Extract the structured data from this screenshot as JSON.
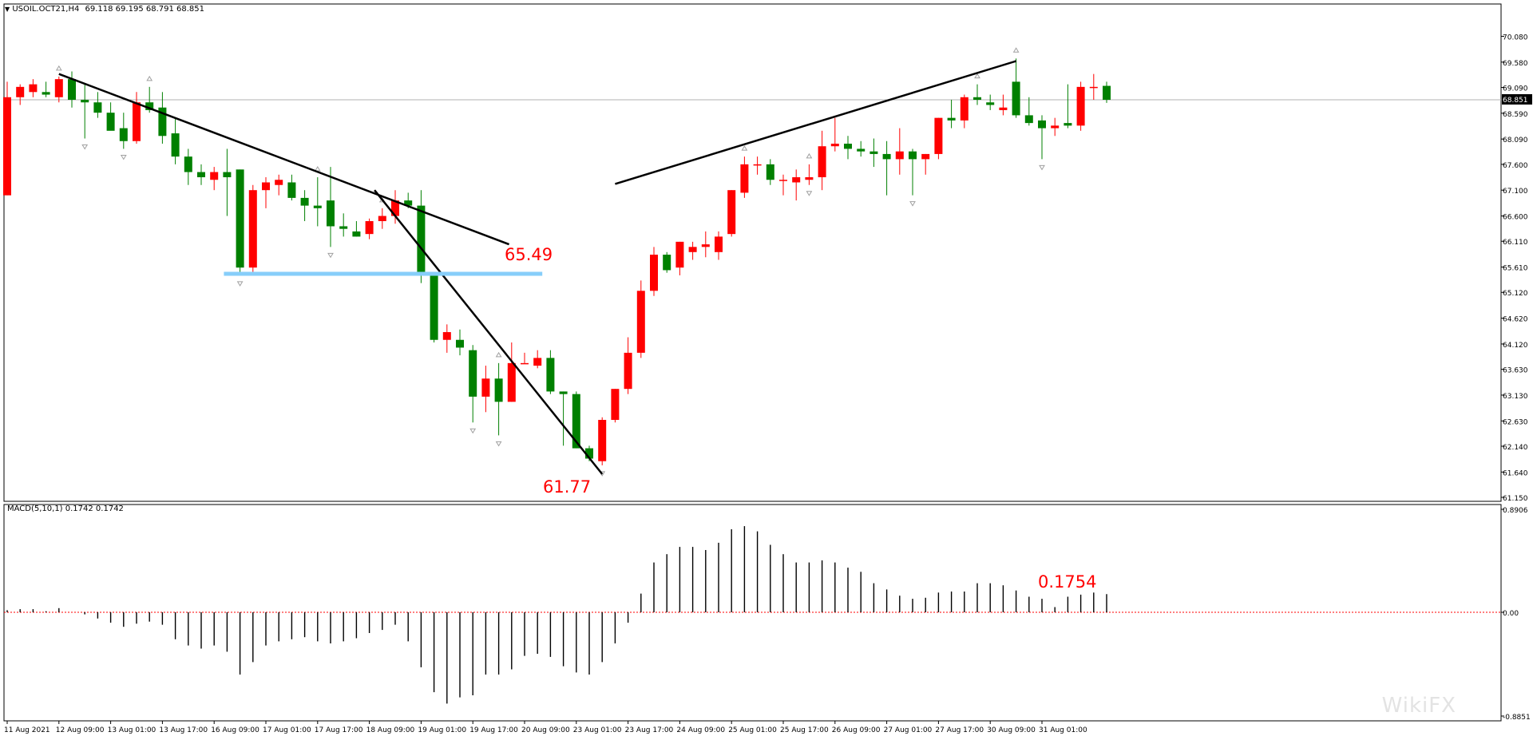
{
  "header": {
    "symbol": "USOIL.OCT21,H4",
    "ohlc": "69.118 69.195 68.791 68.851",
    "dropdown_arrow": "▼"
  },
  "macd_panel": {
    "label": "MACD(5,10,1) 0.1742 0.1742",
    "axis_labels": [
      "0.8906",
      "0.00",
      "-0.8851"
    ]
  },
  "annotations": {
    "resistance_value": "65.49",
    "low_value": "61.77",
    "macd_value": "0.1754"
  },
  "current_price_label": "68.851",
  "watermark": "WikiFX",
  "colors": {
    "bull": "#ff0000",
    "bear": "#008000",
    "wick": "#000000",
    "support": "#87cefa",
    "annotation": "#ff0000",
    "fractal": "#a0a0a0"
  },
  "chart_data": [
    {
      "type": "candlestick",
      "title": "USOIL.OCT21,H4",
      "ylim": [
        61.15,
        70.35
      ],
      "y_ticks": [
        "70.080",
        "69.580",
        "69.090",
        "68.590",
        "68.090",
        "67.600",
        "67.100",
        "66.600",
        "66.110",
        "65.610",
        "65.120",
        "64.620",
        "64.120",
        "63.630",
        "63.130",
        "62.630",
        "62.140",
        "61.640",
        "61.150"
      ],
      "x_labels": [
        "11 Aug 2021",
        "12 Aug 09:00",
        "13 Aug 01:00",
        "13 Aug 17:00",
        "16 Aug 09:00",
        "17 Aug 01:00",
        "17 Aug 17:00",
        "18 Aug 09:00",
        "19 Aug 01:00",
        "19 Aug 17:00",
        "20 Aug 09:00",
        "23 Aug 01:00",
        "23 Aug 17:00",
        "24 Aug 09:00",
        "25 Aug 01:00",
        "25 Aug 17:00",
        "26 Aug 09:00",
        "27 Aug 01:00",
        "27 Aug 17:00",
        "30 Aug 09:00",
        "31 Aug 01:00"
      ],
      "current_price": 68.851,
      "candles": [
        {
          "o": 67.0,
          "h": 69.2,
          "l": 67.0,
          "c": 68.9
        },
        {
          "o": 68.9,
          "h": 69.15,
          "l": 68.75,
          "c": 69.1
        },
        {
          "o": 69.0,
          "h": 69.25,
          "l": 68.9,
          "c": 69.15
        },
        {
          "o": 69.0,
          "h": 69.2,
          "l": 68.9,
          "c": 68.95
        },
        {
          "o": 68.9,
          "h": 69.3,
          "l": 68.8,
          "c": 69.25
        },
        {
          "o": 69.25,
          "h": 69.4,
          "l": 68.7,
          "c": 68.85
        },
        {
          "o": 68.85,
          "h": 69.15,
          "l": 68.1,
          "c": 68.8
        },
        {
          "o": 68.8,
          "h": 69.0,
          "l": 68.5,
          "c": 68.6
        },
        {
          "o": 68.6,
          "h": 68.8,
          "l": 68.3,
          "c": 68.25
        },
        {
          "o": 68.3,
          "h": 68.6,
          "l": 67.9,
          "c": 68.05
        },
        {
          "o": 68.05,
          "h": 69.0,
          "l": 68.0,
          "c": 68.8
        },
        {
          "o": 68.8,
          "h": 69.1,
          "l": 68.6,
          "c": 68.65
        },
        {
          "o": 68.7,
          "h": 69.0,
          "l": 68.0,
          "c": 68.15
        },
        {
          "o": 68.2,
          "h": 68.5,
          "l": 67.6,
          "c": 67.75
        },
        {
          "o": 67.75,
          "h": 67.9,
          "l": 67.2,
          "c": 67.45
        },
        {
          "o": 67.45,
          "h": 67.6,
          "l": 67.2,
          "c": 67.35
        },
        {
          "o": 67.3,
          "h": 67.55,
          "l": 67.1,
          "c": 67.45
        },
        {
          "o": 67.45,
          "h": 67.9,
          "l": 66.6,
          "c": 67.35
        },
        {
          "o": 67.5,
          "h": 67.5,
          "l": 65.45,
          "c": 65.6
        },
        {
          "o": 65.6,
          "h": 67.2,
          "l": 65.5,
          "c": 67.1
        },
        {
          "o": 67.1,
          "h": 67.35,
          "l": 66.75,
          "c": 67.25
        },
        {
          "o": 67.2,
          "h": 67.4,
          "l": 67.0,
          "c": 67.3
        },
        {
          "o": 67.25,
          "h": 67.4,
          "l": 66.9,
          "c": 66.95
        },
        {
          "o": 66.95,
          "h": 67.1,
          "l": 66.5,
          "c": 66.8
        },
        {
          "o": 66.8,
          "h": 67.35,
          "l": 66.4,
          "c": 66.75
        },
        {
          "o": 66.9,
          "h": 67.55,
          "l": 66.0,
          "c": 66.4
        },
        {
          "o": 66.4,
          "h": 66.65,
          "l": 66.2,
          "c": 66.35
        },
        {
          "o": 66.3,
          "h": 66.5,
          "l": 66.2,
          "c": 66.2
        },
        {
          "o": 66.25,
          "h": 66.55,
          "l": 66.15,
          "c": 66.5
        },
        {
          "o": 66.5,
          "h": 66.75,
          "l": 66.35,
          "c": 66.6
        },
        {
          "o": 66.6,
          "h": 67.1,
          "l": 66.45,
          "c": 66.9
        },
        {
          "o": 66.9,
          "h": 67.05,
          "l": 66.75,
          "c": 66.8
        },
        {
          "o": 66.8,
          "h": 67.1,
          "l": 65.3,
          "c": 65.45
        },
        {
          "o": 65.45,
          "h": 65.5,
          "l": 64.15,
          "c": 64.2
        },
        {
          "o": 64.2,
          "h": 64.5,
          "l": 63.95,
          "c": 64.35
        },
        {
          "o": 64.2,
          "h": 64.4,
          "l": 63.9,
          "c": 64.05
        },
        {
          "o": 64.0,
          "h": 64.1,
          "l": 62.6,
          "c": 63.1
        },
        {
          "o": 63.1,
          "h": 63.7,
          "l": 62.8,
          "c": 63.45
        },
        {
          "o": 63.45,
          "h": 63.75,
          "l": 62.35,
          "c": 63.0
        },
        {
          "o": 63.0,
          "h": 64.15,
          "l": 63.0,
          "c": 63.75
        },
        {
          "o": 63.75,
          "h": 63.95,
          "l": 63.75,
          "c": 63.75
        },
        {
          "o": 63.7,
          "h": 64.0,
          "l": 63.65,
          "c": 63.85
        },
        {
          "o": 63.85,
          "h": 64.0,
          "l": 63.15,
          "c": 63.2
        },
        {
          "o": 63.2,
          "h": 63.2,
          "l": 62.15,
          "c": 63.15
        },
        {
          "o": 63.15,
          "h": 63.2,
          "l": 62.1,
          "c": 62.1
        },
        {
          "o": 62.1,
          "h": 62.15,
          "l": 61.85,
          "c": 61.9
        },
        {
          "o": 61.85,
          "h": 62.7,
          "l": 61.77,
          "c": 62.65
        },
        {
          "o": 62.65,
          "h": 63.25,
          "l": 62.6,
          "c": 63.25
        },
        {
          "o": 63.25,
          "h": 64.25,
          "l": 63.15,
          "c": 63.95
        },
        {
          "o": 63.95,
          "h": 65.35,
          "l": 63.85,
          "c": 65.15
        },
        {
          "o": 65.15,
          "h": 66.0,
          "l": 65.05,
          "c": 65.85
        },
        {
          "o": 65.85,
          "h": 65.9,
          "l": 65.5,
          "c": 65.55
        },
        {
          "o": 65.6,
          "h": 66.1,
          "l": 65.45,
          "c": 66.1
        },
        {
          "o": 65.9,
          "h": 66.1,
          "l": 65.75,
          "c": 66.0
        },
        {
          "o": 66.0,
          "h": 66.3,
          "l": 65.8,
          "c": 66.05
        },
        {
          "o": 65.9,
          "h": 66.3,
          "l": 65.75,
          "c": 66.2
        },
        {
          "o": 66.25,
          "h": 67.1,
          "l": 66.2,
          "c": 67.1
        },
        {
          "o": 67.05,
          "h": 67.75,
          "l": 66.95,
          "c": 67.6
        },
        {
          "o": 67.6,
          "h": 67.75,
          "l": 67.4,
          "c": 67.6
        },
        {
          "o": 67.6,
          "h": 67.7,
          "l": 67.2,
          "c": 67.3
        },
        {
          "o": 67.3,
          "h": 67.4,
          "l": 67.0,
          "c": 67.3
        },
        {
          "o": 67.25,
          "h": 67.5,
          "l": 66.9,
          "c": 67.35
        },
        {
          "o": 67.3,
          "h": 67.6,
          "l": 67.2,
          "c": 67.35
        },
        {
          "o": 67.35,
          "h": 68.25,
          "l": 67.1,
          "c": 67.95
        },
        {
          "o": 67.95,
          "h": 68.5,
          "l": 67.85,
          "c": 68.0
        },
        {
          "o": 68.0,
          "h": 68.15,
          "l": 67.7,
          "c": 67.9
        },
        {
          "o": 67.9,
          "h": 68.05,
          "l": 67.75,
          "c": 67.85
        },
        {
          "o": 67.85,
          "h": 68.1,
          "l": 67.55,
          "c": 67.8
        },
        {
          "o": 67.8,
          "h": 68.05,
          "l": 67.0,
          "c": 67.7
        },
        {
          "o": 67.7,
          "h": 68.3,
          "l": 67.4,
          "c": 67.85
        },
        {
          "o": 67.85,
          "h": 67.9,
          "l": 67.0,
          "c": 67.7
        },
        {
          "o": 67.7,
          "h": 67.8,
          "l": 67.4,
          "c": 67.8
        },
        {
          "o": 67.8,
          "h": 68.5,
          "l": 67.7,
          "c": 68.5
        },
        {
          "o": 68.5,
          "h": 68.85,
          "l": 68.3,
          "c": 68.45
        },
        {
          "o": 68.45,
          "h": 68.95,
          "l": 68.3,
          "c": 68.9
        },
        {
          "o": 68.9,
          "h": 69.15,
          "l": 68.75,
          "c": 68.85
        },
        {
          "o": 68.8,
          "h": 68.95,
          "l": 68.65,
          "c": 68.75
        },
        {
          "o": 68.65,
          "h": 68.95,
          "l": 68.55,
          "c": 68.7
        },
        {
          "o": 69.2,
          "h": 69.65,
          "l": 68.5,
          "c": 68.55
        },
        {
          "o": 68.55,
          "h": 68.9,
          "l": 68.35,
          "c": 68.4
        },
        {
          "o": 68.45,
          "h": 68.55,
          "l": 67.7,
          "c": 68.3
        },
        {
          "o": 68.3,
          "h": 68.5,
          "l": 68.15,
          "c": 68.35
        },
        {
          "o": 68.4,
          "h": 69.15,
          "l": 68.3,
          "c": 68.35
        },
        {
          "o": 68.35,
          "h": 69.2,
          "l": 68.25,
          "c": 69.1
        },
        {
          "o": 69.1,
          "h": 69.35,
          "l": 68.85,
          "c": 69.1
        },
        {
          "o": 69.12,
          "h": 69.2,
          "l": 68.79,
          "c": 68.85
        }
      ],
      "trendlines": [
        {
          "x1": 4,
          "y1": 69.35,
          "x2": 38.8,
          "y2": 66.05
        },
        {
          "x1": 28.4,
          "y1": 67.1,
          "x2": 46,
          "y2": 61.6
        },
        {
          "x1": 47,
          "y1": 67.22,
          "x2": 78,
          "y2": 69.6
        }
      ],
      "support": {
        "x1": 17,
        "x2": 41,
        "y": 65.48
      }
    },
    {
      "type": "bar",
      "title": "MACD(5,10,1) 0.1742 0.1742",
      "ylim": [
        -0.8851,
        0.8906
      ],
      "values": [
        0.02,
        0.03,
        0.03,
        0.01,
        0.04,
        0.0,
        -0.02,
        -0.06,
        -0.1,
        -0.14,
        -0.11,
        -0.09,
        -0.12,
        -0.26,
        -0.32,
        -0.35,
        -0.32,
        -0.38,
        -0.6,
        -0.48,
        -0.32,
        -0.28,
        -0.26,
        -0.24,
        -0.28,
        -0.3,
        -0.28,
        -0.25,
        -0.2,
        -0.17,
        -0.12,
        -0.28,
        -0.53,
        -0.77,
        -0.88,
        -0.82,
        -0.8,
        -0.6,
        -0.6,
        -0.55,
        -0.42,
        -0.4,
        -0.43,
        -0.52,
        -0.58,
        -0.6,
        -0.48,
        -0.3,
        -0.1,
        0.18,
        0.48,
        0.56,
        0.63,
        0.63,
        0.6,
        0.67,
        0.8,
        0.83,
        0.78,
        0.65,
        0.56,
        0.48,
        0.48,
        0.5,
        0.48,
        0.43,
        0.39,
        0.28,
        0.22,
        0.16,
        0.13,
        0.14,
        0.19,
        0.2,
        0.2,
        0.28,
        0.28,
        0.26,
        0.21,
        0.15,
        0.13,
        0.05,
        0.15,
        0.17,
        0.19,
        0.175
      ],
      "zero_line": true
    }
  ]
}
